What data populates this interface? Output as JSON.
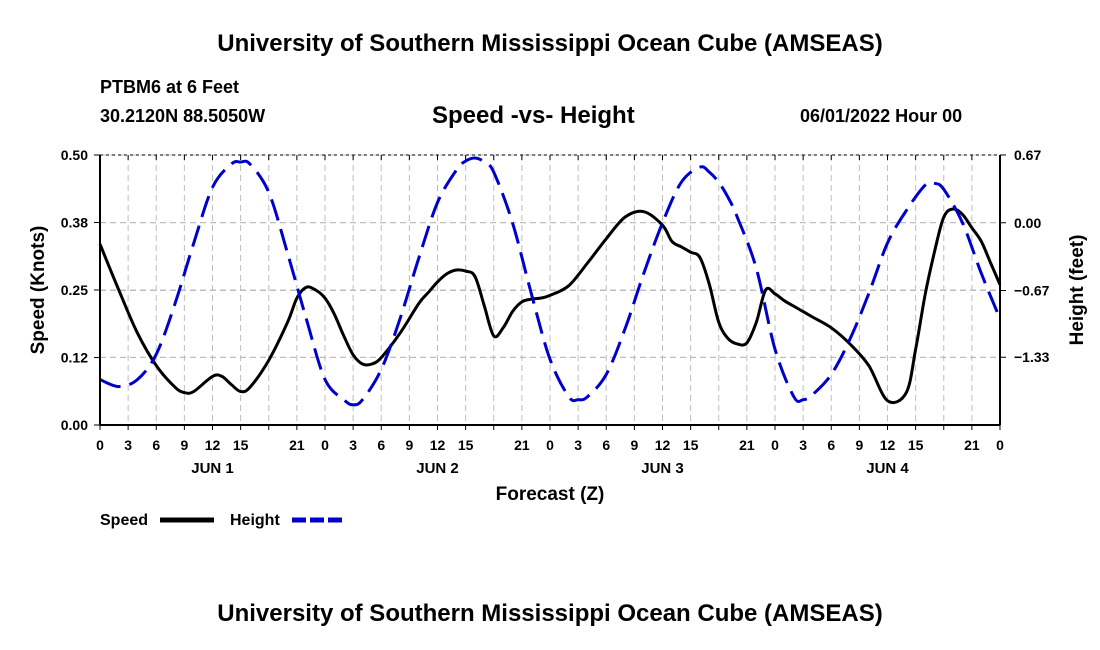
{
  "header": {
    "title": "University of Southern Mississippi Ocean Cube (AMSEAS)",
    "station": "PTBM6 at 6 Feet",
    "coords": "30.2120N  88.5050W",
    "chart_title": "Speed -vs- Height",
    "date": "06/01/2022 Hour 00"
  },
  "footer": {
    "title": "University of Southern Mississippi Ocean Cube (AMSEAS)"
  },
  "chart_data": {
    "type": "line",
    "title": "Speed -vs- Height",
    "xlabel": "Forecast (Z)",
    "ylabel": "Speed (Knots)",
    "y2label": "Height (feet)",
    "x_unit": "hours from 06/01/2022 00Z",
    "xlim": [
      0,
      96
    ],
    "x_ticks": [
      0,
      3,
      6,
      9,
      12,
      15,
      18,
      21,
      24,
      27,
      30,
      33,
      36,
      39,
      42,
      45,
      48,
      51,
      54,
      57,
      60,
      63,
      66,
      69,
      72,
      75,
      78,
      81,
      84,
      87,
      90,
      93,
      96
    ],
    "x_tick_labels": [
      "0",
      "3",
      "6",
      "9",
      "12",
      "15",
      "",
      "21",
      "0",
      "3",
      "6",
      "9",
      "12",
      "15",
      "",
      "21",
      "0",
      "3",
      "6",
      "9",
      "12",
      "15",
      "",
      "21",
      "0",
      "3",
      "6",
      "9",
      "12",
      "15",
      "",
      "21",
      "0"
    ],
    "day_labels": [
      {
        "x": 12,
        "label": "JUN 1"
      },
      {
        "x": 36,
        "label": "JUN 2"
      },
      {
        "x": 60,
        "label": "JUN 3"
      },
      {
        "x": 84,
        "label": "JUN 4"
      }
    ],
    "ylim": [
      0,
      0.5
    ],
    "y_ticks": [
      0,
      0.125,
      0.25,
      0.375,
      0.5
    ],
    "y_tick_labels": [
      "0.00",
      "0.12",
      "0.25",
      "0.38",
      "0.50"
    ],
    "y2lim": [
      -2.0,
      0.67
    ],
    "y2_ticks": [
      0.67,
      0.0,
      -0.67,
      -1.33
    ],
    "y2_tick_labels": [
      "0.67",
      "0.00",
      "−0.67",
      "−1.33"
    ],
    "grid": true,
    "legend": [
      {
        "name": "Speed",
        "color": "#000000",
        "dash": "solid"
      },
      {
        "name": "Height",
        "color": "#0000cc",
        "dash": "dashed"
      }
    ],
    "series": [
      {
        "name": "Speed",
        "axis": "left",
        "color": "#000000",
        "x": [
          0,
          2,
          4,
          6,
          8,
          9,
          10,
          12,
          13,
          14,
          15,
          16,
          18,
          20,
          21,
          22,
          23,
          24,
          25,
          26,
          27,
          28,
          29,
          30,
          32,
          34,
          35,
          36,
          37,
          38,
          39,
          40,
          41,
          42,
          43,
          44,
          45,
          46,
          47,
          48,
          50,
          52,
          54,
          56,
          58,
          60,
          61,
          62,
          63,
          64,
          65,
          66,
          67,
          68,
          69,
          70,
          71,
          72,
          73,
          74,
          75,
          76,
          78,
          80,
          82,
          84,
          86,
          87,
          88,
          89,
          90,
          91,
          92,
          93,
          94,
          95,
          96
        ],
        "values": [
          0.335,
          0.25,
          0.17,
          0.11,
          0.07,
          0.06,
          0.062,
          0.09,
          0.09,
          0.075,
          0.062,
          0.07,
          0.12,
          0.19,
          0.235,
          0.255,
          0.25,
          0.235,
          0.205,
          0.165,
          0.13,
          0.113,
          0.113,
          0.125,
          0.17,
          0.225,
          0.245,
          0.265,
          0.28,
          0.287,
          0.285,
          0.275,
          0.22,
          0.165,
          0.18,
          0.21,
          0.228,
          0.233,
          0.235,
          0.24,
          0.258,
          0.3,
          0.345,
          0.385,
          0.395,
          0.37,
          0.34,
          0.33,
          0.32,
          0.31,
          0.26,
          0.19,
          0.16,
          0.15,
          0.152,
          0.19,
          0.25,
          0.243,
          0.23,
          0.22,
          0.21,
          0.2,
          0.18,
          0.15,
          0.11,
          0.045,
          0.06,
          0.14,
          0.24,
          0.32,
          0.385,
          0.4,
          0.39,
          0.365,
          0.34,
          0.3,
          0.26
        ]
      },
      {
        "name": "Height",
        "axis": "right",
        "color": "#0000cc",
        "x": [
          0,
          2,
          4,
          6,
          8,
          10,
          12,
          14,
          15,
          16,
          18,
          20,
          22,
          24,
          26,
          27,
          28,
          30,
          32,
          34,
          36,
          38,
          39,
          40,
          41,
          42,
          44,
          46,
          48,
          50,
          51,
          52,
          54,
          56,
          58,
          60,
          62,
          64,
          65,
          66,
          67,
          68,
          70,
          72,
          74,
          75,
          76,
          78,
          80,
          82,
          84,
          86,
          88,
          89,
          90,
          92,
          94,
          96
        ],
        "values": [
          -1.55,
          -1.62,
          -1.55,
          -1.3,
          -0.8,
          -0.2,
          0.35,
          0.58,
          0.6,
          0.58,
          0.3,
          -0.3,
          -0.95,
          -1.55,
          -1.75,
          -1.8,
          -1.75,
          -1.45,
          -0.95,
          -0.35,
          0.2,
          0.52,
          0.61,
          0.64,
          0.6,
          0.5,
          0.0,
          -0.7,
          -1.35,
          -1.72,
          -1.75,
          -1.72,
          -1.5,
          -1.05,
          -0.5,
          0.0,
          0.4,
          0.55,
          0.5,
          0.4,
          0.25,
          0.05,
          -0.45,
          -1.25,
          -1.72,
          -1.75,
          -1.7,
          -1.5,
          -1.15,
          -0.7,
          -0.2,
          0.12,
          0.37,
          0.39,
          0.33,
          0.0,
          -0.5,
          -0.95
        ]
      }
    ]
  }
}
